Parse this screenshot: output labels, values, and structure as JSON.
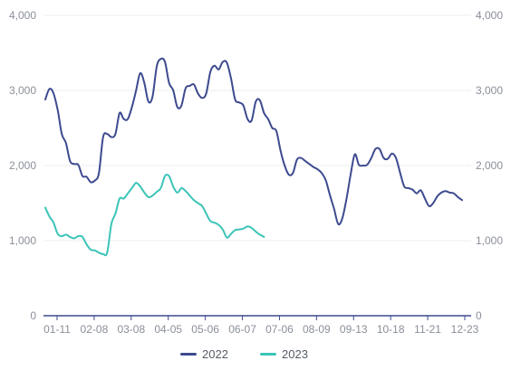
{
  "chart_data": {
    "type": "line",
    "x_ticks": [
      "01-11",
      "02-08",
      "03-08",
      "04-05",
      "05-06",
      "06-07",
      "07-06",
      "08-09",
      "09-13",
      "10-18",
      "11-21",
      "12-23"
    ],
    "y_ticks": [
      "0",
      "1,000",
      "2,000",
      "3,000",
      "4,000"
    ],
    "ylim": [
      0,
      4000
    ],
    "grid": true,
    "legend_position": "bottom",
    "series": [
      {
        "name": "2022",
        "color": "#3d4a8f",
        "values": [
          2880,
          3020,
          2960,
          2740,
          2420,
          2300,
          2060,
          2020,
          2010,
          1860,
          1850,
          1780,
          1800,
          1900,
          2380,
          2420,
          2380,
          2420,
          2700,
          2620,
          2620,
          2780,
          3000,
          3230,
          3100,
          2850,
          2920,
          3320,
          3420,
          3380,
          3100,
          3000,
          2780,
          2800,
          3030,
          3060,
          3080,
          2960,
          2900,
          2960,
          3250,
          3330,
          3280,
          3380,
          3370,
          3160,
          2880,
          2840,
          2800,
          2620,
          2600,
          2850,
          2870,
          2700,
          2620,
          2500,
          2460,
          2200,
          2000,
          1880,
          1900,
          2080,
          2100,
          2060,
          2020,
          1980,
          1950,
          1900,
          1800,
          1600,
          1420,
          1220,
          1300,
          1560,
          1880,
          2150,
          2010,
          2000,
          2010,
          2100,
          2220,
          2220,
          2100,
          2090,
          2160,
          2100,
          1900,
          1720,
          1700,
          1680,
          1630,
          1670,
          1560,
          1460,
          1500,
          1590,
          1640,
          1660,
          1640,
          1630,
          1580,
          1540
        ]
      },
      {
        "name": "2023",
        "color": "#3bc4b8",
        "values": [
          1440,
          1320,
          1240,
          1090,
          1060,
          1080,
          1050,
          1030,
          1060,
          1050,
          950,
          880,
          870,
          840,
          820,
          840,
          1220,
          1360,
          1560,
          1560,
          1630,
          1700,
          1770,
          1720,
          1640,
          1580,
          1600,
          1650,
          1700,
          1860,
          1860,
          1720,
          1640,
          1700,
          1660,
          1600,
          1540,
          1500,
          1460,
          1360,
          1260,
          1240,
          1210,
          1150,
          1040,
          1090,
          1140,
          1150,
          1160,
          1190,
          1170,
          1120,
          1080,
          1050
        ]
      }
    ]
  }
}
